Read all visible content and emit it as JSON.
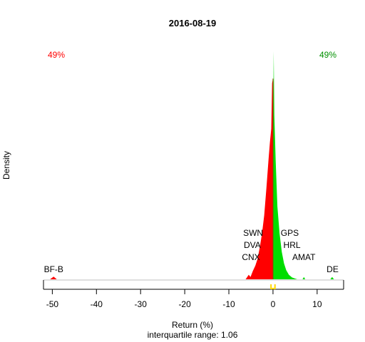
{
  "chart_data": {
    "type": "area",
    "title": "2016-08-19",
    "xlabel": "Return (%)",
    "ylabel": "Density",
    "subtitle_prefix": "interquartile range: ",
    "iqr": "1.06",
    "xlim": [
      -52,
      16
    ],
    "ylim": [
      0,
      1
    ],
    "x_ticks": [
      -50,
      -40,
      -30,
      -20,
      -10,
      0,
      10
    ],
    "x_tick_labels": [
      "-50",
      "-40",
      "-30",
      "-20",
      "-10",
      "0",
      "10"
    ],
    "pct_negative": "49%",
    "pct_positive": "49%",
    "colors": {
      "negative": "#ff0000",
      "positive": "#00dd00",
      "center": "#ffd700",
      "baseline": "#bebebe",
      "axis": "#000000"
    },
    "negative_density": [
      {
        "x": -50.5,
        "y": 0
      },
      {
        "x": -49.7,
        "y": 0.012
      },
      {
        "x": -49.0,
        "y": 0
      },
      {
        "x": -6.2,
        "y": 0
      },
      {
        "x": -5.5,
        "y": 0.02
      },
      {
        "x": -5.1,
        "y": 0.01
      },
      {
        "x": -4.6,
        "y": 0.035
      },
      {
        "x": -4.0,
        "y": 0.06
      },
      {
        "x": -3.5,
        "y": 0.09
      },
      {
        "x": -3.0,
        "y": 0.14
      },
      {
        "x": -2.5,
        "y": 0.2
      },
      {
        "x": -2.0,
        "y": 0.28
      },
      {
        "x": -1.5,
        "y": 0.4
      },
      {
        "x": -1.0,
        "y": 0.53
      },
      {
        "x": -0.7,
        "y": 0.6
      },
      {
        "x": -0.4,
        "y": 0.66
      },
      {
        "x": -0.2,
        "y": 0.86
      },
      {
        "x": 0.0,
        "y": 0.88
      }
    ],
    "positive_density": [
      {
        "x": 0.0,
        "y": 0.55
      },
      {
        "x": 0.15,
        "y": 1.0
      },
      {
        "x": 0.3,
        "y": 0.72
      },
      {
        "x": 0.6,
        "y": 0.52
      },
      {
        "x": 1.0,
        "y": 0.32
      },
      {
        "x": 1.5,
        "y": 0.2
      },
      {
        "x": 2.0,
        "y": 0.12
      },
      {
        "x": 2.5,
        "y": 0.07
      },
      {
        "x": 3.0,
        "y": 0.04
      },
      {
        "x": 3.6,
        "y": 0.02
      },
      {
        "x": 4.3,
        "y": 0.008
      },
      {
        "x": 5.0,
        "y": 0.003
      },
      {
        "x": 5.5,
        "y": 0
      },
      {
        "x": 6.7,
        "y": 0
      },
      {
        "x": 7.0,
        "y": 0.01
      },
      {
        "x": 7.3,
        "y": 0
      },
      {
        "x": 13.0,
        "y": 0
      },
      {
        "x": 13.4,
        "y": 0.01
      },
      {
        "x": 13.8,
        "y": 0
      }
    ],
    "annotations": [
      {
        "text": "SWN",
        "x": -4.5,
        "level": 3
      },
      {
        "text": "DVA",
        "x": -4.7,
        "level": 2
      },
      {
        "text": "CNX",
        "x": -5.0,
        "level": 1
      },
      {
        "text": "GPS",
        "x": 3.8,
        "level": 3
      },
      {
        "text": "HRL",
        "x": 4.3,
        "level": 2
      },
      {
        "text": "AMAT",
        "x": 7.0,
        "level": 1
      },
      {
        "text": "DE",
        "x": 13.5,
        "level": 0
      },
      {
        "text": "BF-B",
        "x": -49.7,
        "level": 0
      }
    ],
    "center_marks": [
      -0.45,
      0.45
    ]
  }
}
